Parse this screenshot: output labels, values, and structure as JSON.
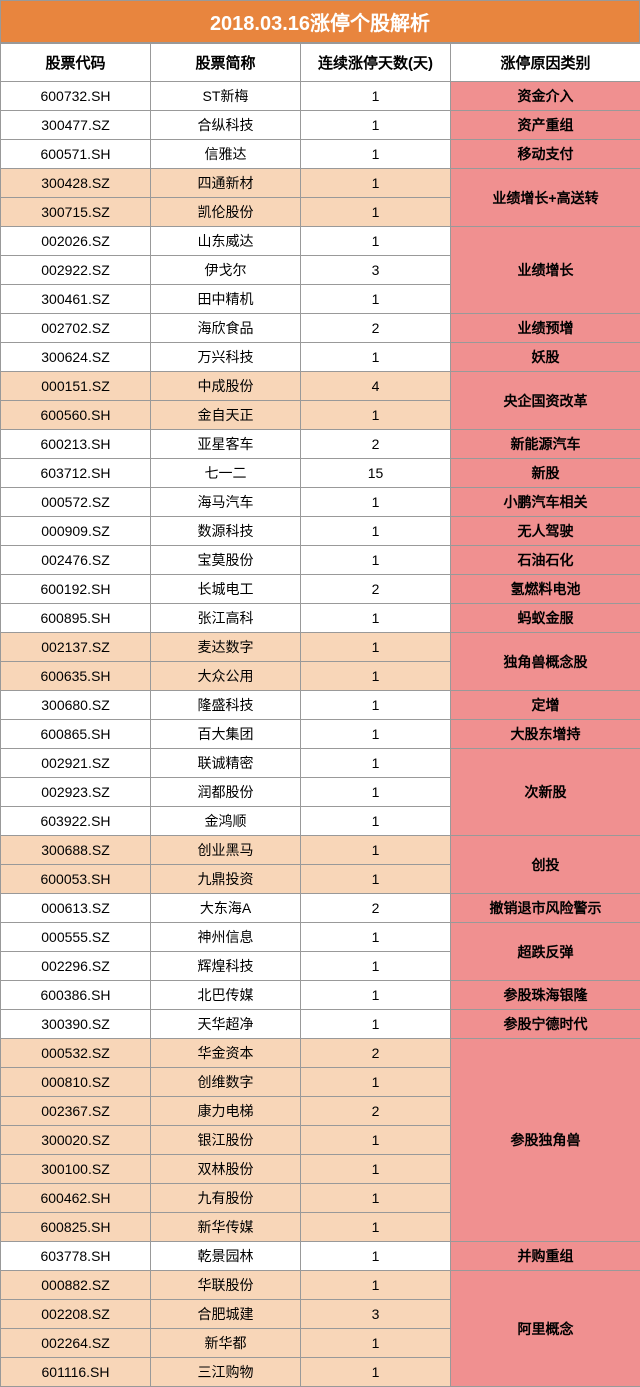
{
  "title": "2018.03.16涨停个股解析",
  "headers": {
    "code": "股票代码",
    "name": "股票简称",
    "days": "连续涨停天数(天)",
    "reason": "涨停原因类别"
  },
  "colors": {
    "title_bg": "#e8853e",
    "title_fg": "#ffffff",
    "border": "#999999",
    "bg_white": "#ffffff",
    "bg_peach": "#f8d6b8",
    "bg_pink": "#f09090"
  },
  "groups": [
    {
      "reason": "资金介入",
      "rowbg": "white",
      "rows": [
        {
          "code": "600732.SH",
          "name": "ST新梅",
          "days": "1"
        }
      ]
    },
    {
      "reason": "资产重组",
      "rowbg": "white",
      "rows": [
        {
          "code": "300477.SZ",
          "name": "合纵科技",
          "days": "1"
        }
      ]
    },
    {
      "reason": "移动支付",
      "rowbg": "white",
      "rows": [
        {
          "code": "600571.SH",
          "name": "信雅达",
          "days": "1"
        }
      ]
    },
    {
      "reason": "业绩增长+高送转",
      "rowbg": "peach",
      "rows": [
        {
          "code": "300428.SZ",
          "name": "四通新材",
          "days": "1"
        },
        {
          "code": "300715.SZ",
          "name": "凯伦股份",
          "days": "1"
        }
      ]
    },
    {
      "reason": "业绩增长",
      "rowbg": "white",
      "rows": [
        {
          "code": "002026.SZ",
          "name": "山东威达",
          "days": "1"
        },
        {
          "code": "002922.SZ",
          "name": "伊戈尔",
          "days": "3"
        },
        {
          "code": "300461.SZ",
          "name": "田中精机",
          "days": "1"
        }
      ]
    },
    {
      "reason": "业绩预增",
      "rowbg": "white",
      "rows": [
        {
          "code": "002702.SZ",
          "name": "海欣食品",
          "days": "2"
        }
      ]
    },
    {
      "reason": "妖股",
      "rowbg": "white",
      "rows": [
        {
          "code": "300624.SZ",
          "name": "万兴科技",
          "days": "1"
        }
      ]
    },
    {
      "reason": "央企国资改革",
      "rowbg": "peach",
      "rows": [
        {
          "code": "000151.SZ",
          "name": "中成股份",
          "days": "4"
        },
        {
          "code": "600560.SH",
          "name": "金自天正",
          "days": "1"
        }
      ]
    },
    {
      "reason": "新能源汽车",
      "rowbg": "white",
      "rows": [
        {
          "code": "600213.SH",
          "name": "亚星客车",
          "days": "2"
        }
      ]
    },
    {
      "reason": "新股",
      "rowbg": "white",
      "rows": [
        {
          "code": "603712.SH",
          "name": "七一二",
          "days": "15"
        }
      ]
    },
    {
      "reason": "小鹏汽车相关",
      "rowbg": "white",
      "rows": [
        {
          "code": "000572.SZ",
          "name": "海马汽车",
          "days": "1"
        }
      ]
    },
    {
      "reason": "无人驾驶",
      "rowbg": "white",
      "rows": [
        {
          "code": "000909.SZ",
          "name": "数源科技",
          "days": "1"
        }
      ]
    },
    {
      "reason": "石油石化",
      "rowbg": "white",
      "rows": [
        {
          "code": "002476.SZ",
          "name": "宝莫股份",
          "days": "1"
        }
      ]
    },
    {
      "reason": "氢燃料电池",
      "rowbg": "white",
      "rows": [
        {
          "code": "600192.SH",
          "name": "长城电工",
          "days": "2"
        }
      ]
    },
    {
      "reason": "蚂蚁金服",
      "rowbg": "white",
      "rows": [
        {
          "code": "600895.SH",
          "name": "张江高科",
          "days": "1"
        }
      ]
    },
    {
      "reason": "独角兽概念股",
      "rowbg": "peach",
      "rows": [
        {
          "code": "002137.SZ",
          "name": "麦达数字",
          "days": "1"
        },
        {
          "code": "600635.SH",
          "name": "大众公用",
          "days": "1"
        }
      ]
    },
    {
      "reason": "定增",
      "rowbg": "white",
      "rows": [
        {
          "code": "300680.SZ",
          "name": "隆盛科技",
          "days": "1"
        }
      ]
    },
    {
      "reason": "大股东增持",
      "rowbg": "white",
      "rows": [
        {
          "code": "600865.SH",
          "name": "百大集团",
          "days": "1"
        }
      ]
    },
    {
      "reason": "次新股",
      "rowbg": "white",
      "rows": [
        {
          "code": "002921.SZ",
          "name": "联诚精密",
          "days": "1"
        },
        {
          "code": "002923.SZ",
          "name": "润都股份",
          "days": "1"
        },
        {
          "code": "603922.SH",
          "name": "金鸿顺",
          "days": "1"
        }
      ]
    },
    {
      "reason": "创投",
      "rowbg": "peach",
      "rows": [
        {
          "code": "300688.SZ",
          "name": "创业黑马",
          "days": "1"
        },
        {
          "code": "600053.SH",
          "name": "九鼎投资",
          "days": "1"
        }
      ]
    },
    {
      "reason": "撤销退市风险警示",
      "rowbg": "white",
      "rows": [
        {
          "code": "000613.SZ",
          "name": "大东海A",
          "days": "2"
        }
      ]
    },
    {
      "reason": "超跌反弹",
      "rowbg": "white",
      "rows": [
        {
          "code": "000555.SZ",
          "name": "神州信息",
          "days": "1"
        },
        {
          "code": "002296.SZ",
          "name": "辉煌科技",
          "days": "1"
        }
      ]
    },
    {
      "reason": "参股珠海银隆",
      "rowbg": "white",
      "rows": [
        {
          "code": "600386.SH",
          "name": "北巴传媒",
          "days": "1"
        }
      ]
    },
    {
      "reason": "参股宁德时代",
      "rowbg": "white",
      "rows": [
        {
          "code": "300390.SZ",
          "name": "天华超净",
          "days": "1"
        }
      ]
    },
    {
      "reason": "参股独角兽",
      "rowbg": "peach",
      "rows": [
        {
          "code": "000532.SZ",
          "name": "华金资本",
          "days": "2"
        },
        {
          "code": "000810.SZ",
          "name": "创维数字",
          "days": "1"
        },
        {
          "code": "002367.SZ",
          "name": "康力电梯",
          "days": "2"
        },
        {
          "code": "300020.SZ",
          "name": "银江股份",
          "days": "1"
        },
        {
          "code": "300100.SZ",
          "name": "双林股份",
          "days": "1"
        },
        {
          "code": "600462.SH",
          "name": "九有股份",
          "days": "1"
        },
        {
          "code": "600825.SH",
          "name": "新华传媒",
          "days": "1"
        }
      ]
    },
    {
      "reason": "并购重组",
      "rowbg": "white",
      "rows": [
        {
          "code": "603778.SH",
          "name": "乾景园林",
          "days": "1"
        }
      ]
    },
    {
      "reason": "阿里概念",
      "rowbg": "peach",
      "rows": [
        {
          "code": "000882.SZ",
          "name": "华联股份",
          "days": "1"
        },
        {
          "code": "002208.SZ",
          "name": "合肥城建",
          "days": "3"
        },
        {
          "code": "002264.SZ",
          "name": "新华都",
          "days": "1"
        },
        {
          "code": "601116.SH",
          "name": "三江购物",
          "days": "1"
        }
      ]
    }
  ]
}
